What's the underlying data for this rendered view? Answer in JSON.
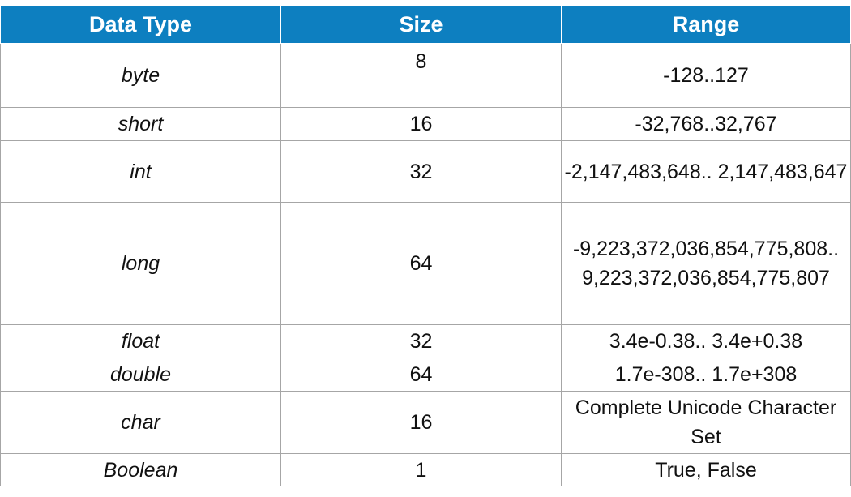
{
  "table": {
    "headers": [
      "Data Type",
      "Size",
      "Range"
    ],
    "rows": [
      {
        "type": "byte",
        "size": "8",
        "range": "-128..127"
      },
      {
        "type": "short",
        "size": "16",
        "range": "-32,768..32,767"
      },
      {
        "type": "int",
        "size": "32",
        "range": "-2,147,483,648.. 2,147,483,647"
      },
      {
        "type": "long",
        "size": "64",
        "range": "-9,223,372,036,854,775,808.. 9,223,372,036,854,775,807"
      },
      {
        "type": "float",
        "size": "32",
        "range": "3.4e-0.38.. 3.4e+0.38"
      },
      {
        "type": "double",
        "size": "64",
        "range": "1.7e-308.. 1.7e+308"
      },
      {
        "type": "char",
        "size": "16",
        "range": "Complete Unicode Character Set"
      },
      {
        "type": "Boolean",
        "size": "1",
        "range": "True, False"
      }
    ],
    "header_color": "#0d7fc0"
  }
}
